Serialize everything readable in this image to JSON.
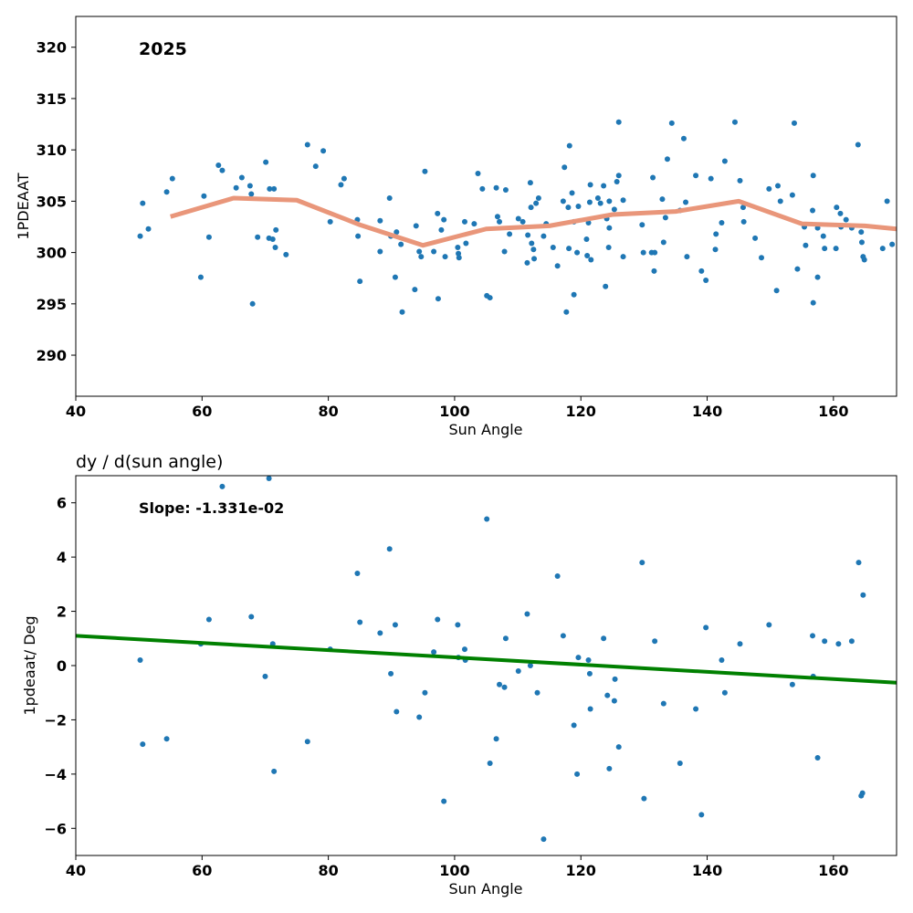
{
  "chart_data": [
    {
      "type": "scatter",
      "title": "",
      "xlabel": "Sun Angle",
      "ylabel": "1PDEAAT",
      "annotation": "2025",
      "xlim": [
        40,
        170
      ],
      "ylim": [
        286,
        323
      ],
      "xticks": [
        40,
        60,
        80,
        100,
        120,
        140,
        160
      ],
      "yticks": [
        290,
        295,
        300,
        305,
        310,
        315,
        320
      ],
      "grid": false,
      "colors": {
        "points": "#1f77b4",
        "smooth_line": "#e9967a"
      },
      "points": [
        [
          50.2,
          301.6
        ],
        [
          50.6,
          304.8
        ],
        [
          51.5,
          302.3
        ],
        [
          54.4,
          305.9
        ],
        [
          55.3,
          307.2
        ],
        [
          59.8,
          297.6
        ],
        [
          60.3,
          305.5
        ],
        [
          61.1,
          301.5
        ],
        [
          62.6,
          308.5
        ],
        [
          63.2,
          308.0
        ],
        [
          65.4,
          306.3
        ],
        [
          66.3,
          307.3
        ],
        [
          67.6,
          306.5
        ],
        [
          67.8,
          305.7
        ],
        [
          68.0,
          295.0
        ],
        [
          68.8,
          301.5
        ],
        [
          70.1,
          308.8
        ],
        [
          70.6,
          301.4
        ],
        [
          70.7,
          306.2
        ],
        [
          71.2,
          301.3
        ],
        [
          71.4,
          306.2
        ],
        [
          71.6,
          300.5
        ],
        [
          71.7,
          302.2
        ],
        [
          73.3,
          299.8
        ],
        [
          76.7,
          310.5
        ],
        [
          78.0,
          308.4
        ],
        [
          79.2,
          309.9
        ],
        [
          80.3,
          303.0
        ],
        [
          82.0,
          306.6
        ],
        [
          82.5,
          307.2
        ],
        [
          84.6,
          303.2
        ],
        [
          84.7,
          301.6
        ],
        [
          85.0,
          297.2
        ],
        [
          88.2,
          303.1
        ],
        [
          88.2,
          300.1
        ],
        [
          89.7,
          305.3
        ],
        [
          89.9,
          301.6
        ],
        [
          90.6,
          297.6
        ],
        [
          90.8,
          302.0
        ],
        [
          91.5,
          300.8
        ],
        [
          91.7,
          294.2
        ],
        [
          93.7,
          296.4
        ],
        [
          93.9,
          302.6
        ],
        [
          94.4,
          300.1
        ],
        [
          94.7,
          299.6
        ],
        [
          95.3,
          307.9
        ],
        [
          96.7,
          300.1
        ],
        [
          97.3,
          303.8
        ],
        [
          97.4,
          295.5
        ],
        [
          97.9,
          302.2
        ],
        [
          98.3,
          303.2
        ],
        [
          98.5,
          299.6
        ],
        [
          100.5,
          300.5
        ],
        [
          100.6,
          299.9
        ],
        [
          100.7,
          299.5
        ],
        [
          101.6,
          303.0
        ],
        [
          101.8,
          300.9
        ],
        [
          103.1,
          302.8
        ],
        [
          103.7,
          307.7
        ],
        [
          104.4,
          306.2
        ],
        [
          105.1,
          295.8
        ],
        [
          105.6,
          295.6
        ],
        [
          106.6,
          306.3
        ],
        [
          106.8,
          303.5
        ],
        [
          107.1,
          303.0
        ],
        [
          107.9,
          300.1
        ],
        [
          108.1,
          306.1
        ],
        [
          108.7,
          301.8
        ],
        [
          110.1,
          303.3
        ],
        [
          110.8,
          303.0
        ],
        [
          111.5,
          299.0
        ],
        [
          111.6,
          301.7
        ],
        [
          112.0,
          306.8
        ],
        [
          112.1,
          304.4
        ],
        [
          112.2,
          300.9
        ],
        [
          112.5,
          300.3
        ],
        [
          112.6,
          299.4
        ],
        [
          112.9,
          304.8
        ],
        [
          113.3,
          305.3
        ],
        [
          114.1,
          301.6
        ],
        [
          114.5,
          302.8
        ],
        [
          115.6,
          300.5
        ],
        [
          116.3,
          298.7
        ],
        [
          117.2,
          305.0
        ],
        [
          117.4,
          308.3
        ],
        [
          117.7,
          294.2
        ],
        [
          118.0,
          304.4
        ],
        [
          118.1,
          300.4
        ],
        [
          118.2,
          310.4
        ],
        [
          118.6,
          305.8
        ],
        [
          118.9,
          295.9
        ],
        [
          118.9,
          303.0
        ],
        [
          119.4,
          300.0
        ],
        [
          119.6,
          304.5
        ],
        [
          120.9,
          301.3
        ],
        [
          121.2,
          302.9
        ],
        [
          121.0,
          299.7
        ],
        [
          121.4,
          304.9
        ],
        [
          121.5,
          306.6
        ],
        [
          121.6,
          299.3
        ],
        [
          122.7,
          305.3
        ],
        [
          123.1,
          304.8
        ],
        [
          123.6,
          306.5
        ],
        [
          123.9,
          296.7
        ],
        [
          124.1,
          303.3
        ],
        [
          124.4,
          300.5
        ],
        [
          124.5,
          305.0
        ],
        [
          124.5,
          302.4
        ],
        [
          125.3,
          304.2
        ],
        [
          125.7,
          306.9
        ],
        [
          126.0,
          307.5
        ],
        [
          126.0,
          312.7
        ],
        [
          126.7,
          305.1
        ],
        [
          126.7,
          299.6
        ],
        [
          129.7,
          302.7
        ],
        [
          129.9,
          300.0
        ],
        [
          131.2,
          300.0
        ],
        [
          131.4,
          307.3
        ],
        [
          131.6,
          298.2
        ],
        [
          131.7,
          300.0
        ],
        [
          132.9,
          305.2
        ],
        [
          133.1,
          301.0
        ],
        [
          133.4,
          303.4
        ],
        [
          133.7,
          309.1
        ],
        [
          134.4,
          312.6
        ],
        [
          135.7,
          304.1
        ],
        [
          136.3,
          311.1
        ],
        [
          136.6,
          304.9
        ],
        [
          136.8,
          299.6
        ],
        [
          138.2,
          307.5
        ],
        [
          139.1,
          298.2
        ],
        [
          139.8,
          297.3
        ],
        [
          140.6,
          307.2
        ],
        [
          141.3,
          300.3
        ],
        [
          141.4,
          301.8
        ],
        [
          142.3,
          302.9
        ],
        [
          142.8,
          308.9
        ],
        [
          144.4,
          312.7
        ],
        [
          145.2,
          307.0
        ],
        [
          145.7,
          304.4
        ],
        [
          145.8,
          303.0
        ],
        [
          147.6,
          301.4
        ],
        [
          148.6,
          299.5
        ],
        [
          149.8,
          306.2
        ],
        [
          151.0,
          296.3
        ],
        [
          151.2,
          306.5
        ],
        [
          151.6,
          305.0
        ],
        [
          153.5,
          305.6
        ],
        [
          153.8,
          312.6
        ],
        [
          154.3,
          298.4
        ],
        [
          155.4,
          302.5
        ],
        [
          155.6,
          300.7
        ],
        [
          156.7,
          304.1
        ],
        [
          156.8,
          295.1
        ],
        [
          156.8,
          307.5
        ],
        [
          157.5,
          297.6
        ],
        [
          157.5,
          302.4
        ],
        [
          158.4,
          301.6
        ],
        [
          158.6,
          300.4
        ],
        [
          160.4,
          300.4
        ],
        [
          160.5,
          304.4
        ],
        [
          161.1,
          303.8
        ],
        [
          161.2,
          302.5
        ],
        [
          162.0,
          303.2
        ],
        [
          162.9,
          302.4
        ],
        [
          163.9,
          310.5
        ],
        [
          164.4,
          302.0
        ],
        [
          164.5,
          301.0
        ],
        [
          164.7,
          299.6
        ],
        [
          164.9,
          299.3
        ],
        [
          167.8,
          300.4
        ],
        [
          168.5,
          305.0
        ],
        [
          169.3,
          300.8
        ]
      ],
      "smooth_line": {
        "x": [
          55,
          65,
          75,
          85,
          95,
          105,
          115,
          125,
          135,
          145,
          155,
          165,
          170
        ],
        "y": [
          303.5,
          305.3,
          305.1,
          302.7,
          300.7,
          302.3,
          302.6,
          303.7,
          304.0,
          305.0,
          302.8,
          302.6,
          302.3
        ]
      }
    },
    {
      "type": "scatter",
      "title": "dy / d(sun angle)",
      "xlabel": "Sun Angle",
      "ylabel": "1pdeaat/ Deg",
      "annotation": "Slope: -1.331e-02",
      "xlim": [
        40,
        170
      ],
      "ylim": [
        -7,
        7
      ],
      "xticks": [
        40,
        60,
        80,
        100,
        120,
        140,
        160
      ],
      "yticks": [
        -6,
        -4,
        -2,
        0,
        2,
        4,
        6
      ],
      "grid": false,
      "colors": {
        "points": "#1f77b4",
        "fit_line": "#008000"
      },
      "points": [
        [
          50.2,
          0.2
        ],
        [
          50.6,
          -2.9
        ],
        [
          54.4,
          -2.7
        ],
        [
          59.8,
          0.8
        ],
        [
          61.1,
          1.7
        ],
        [
          63.2,
          6.6
        ],
        [
          67.8,
          1.8
        ],
        [
          70.0,
          -0.4
        ],
        [
          70.6,
          6.9
        ],
        [
          71.2,
          0.8
        ],
        [
          71.4,
          -3.9
        ],
        [
          76.7,
          -2.8
        ],
        [
          80.3,
          0.6
        ],
        [
          84.6,
          3.4
        ],
        [
          85.0,
          1.6
        ],
        [
          88.2,
          1.2
        ],
        [
          89.7,
          4.3
        ],
        [
          89.9,
          -0.3
        ],
        [
          90.6,
          1.5
        ],
        [
          90.8,
          -1.7
        ],
        [
          94.4,
          -1.9
        ],
        [
          95.3,
          -1.0
        ],
        [
          96.7,
          0.5
        ],
        [
          97.3,
          1.7
        ],
        [
          98.3,
          -5.0
        ],
        [
          100.5,
          1.5
        ],
        [
          100.6,
          0.3
        ],
        [
          101.6,
          0.6
        ],
        [
          101.7,
          0.2
        ],
        [
          105.1,
          5.4
        ],
        [
          105.6,
          -3.6
        ],
        [
          106.6,
          -2.7
        ],
        [
          107.1,
          -0.7
        ],
        [
          107.9,
          -0.8
        ],
        [
          108.1,
          1.0
        ],
        [
          110.1,
          -0.2
        ],
        [
          111.5,
          1.9
        ],
        [
          112.0,
          0.0
        ],
        [
          113.1,
          -1.0
        ],
        [
          114.1,
          -6.4
        ],
        [
          116.3,
          3.3
        ],
        [
          117.2,
          1.1
        ],
        [
          118.9,
          -2.2
        ],
        [
          119.4,
          -4.0
        ],
        [
          119.6,
          0.3
        ],
        [
          121.2,
          0.2
        ],
        [
          121.4,
          -0.3
        ],
        [
          121.5,
          -1.6
        ],
        [
          123.6,
          1.0
        ],
        [
          124.2,
          -1.1
        ],
        [
          124.5,
          -3.8
        ],
        [
          125.3,
          -1.3
        ],
        [
          125.4,
          -0.5
        ],
        [
          126.0,
          -3.0
        ],
        [
          129.7,
          3.8
        ],
        [
          130.0,
          -4.9
        ],
        [
          131.7,
          0.9
        ],
        [
          133.1,
          -1.4
        ],
        [
          135.7,
          -3.6
        ],
        [
          138.2,
          -1.6
        ],
        [
          139.1,
          -5.5
        ],
        [
          139.8,
          1.4
        ],
        [
          142.3,
          0.2
        ],
        [
          142.8,
          -1.0
        ],
        [
          145.2,
          0.8
        ],
        [
          149.8,
          1.5
        ],
        [
          153.5,
          -0.7
        ],
        [
          156.7,
          1.1
        ],
        [
          156.8,
          -0.4
        ],
        [
          157.5,
          -3.4
        ],
        [
          158.6,
          0.9
        ],
        [
          160.8,
          0.8
        ],
        [
          162.9,
          0.9
        ],
        [
          164.0,
          3.8
        ],
        [
          164.4,
          -4.8
        ],
        [
          164.6,
          -4.7
        ],
        [
          164.7,
          2.6
        ]
      ],
      "fit_line": {
        "x": [
          40,
          170
        ],
        "y": [
          1.1,
          -0.63
        ]
      }
    }
  ]
}
